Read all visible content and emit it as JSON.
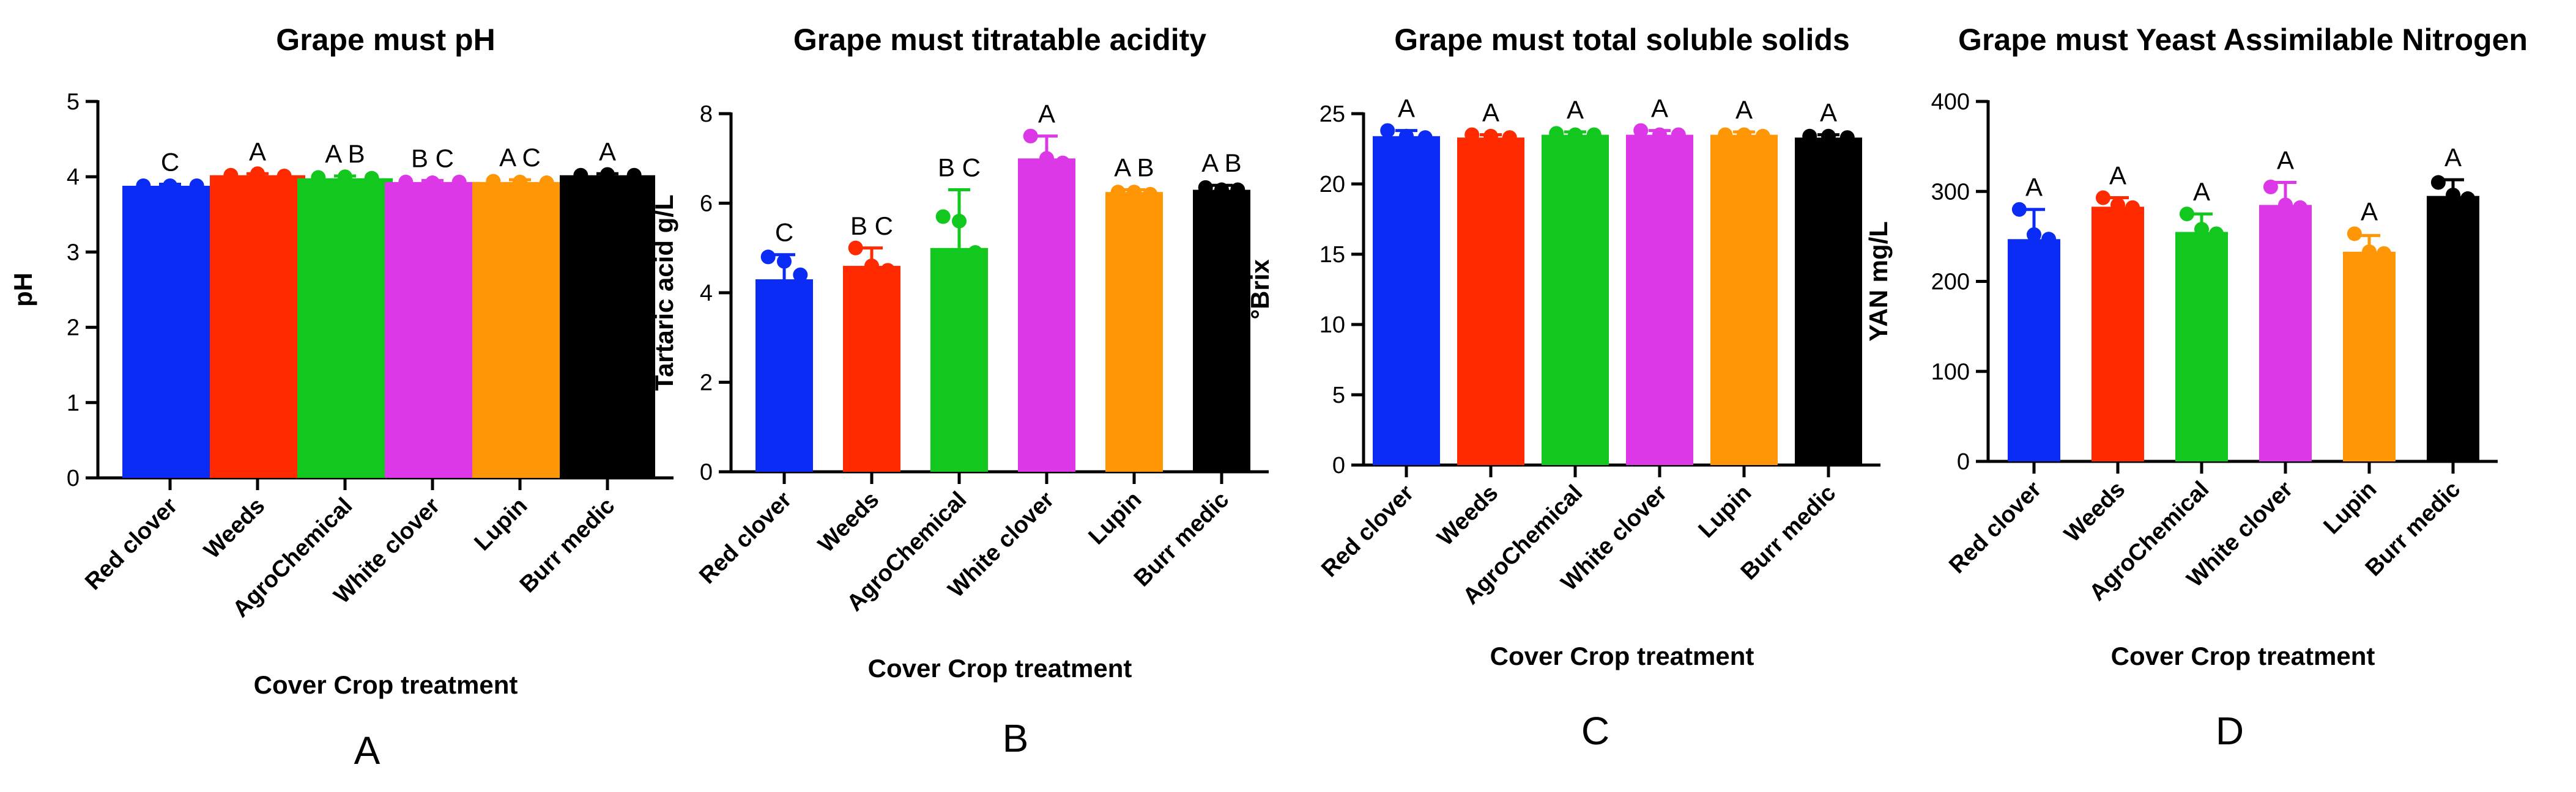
{
  "chart_data": [
    {
      "type": "bar",
      "title": "Grape must pH",
      "xlabel": "Cover Crop treatment",
      "ylabel": "pH",
      "panel_label": "A",
      "ylim": [
        0,
        5
      ],
      "yticks": [
        0,
        1,
        2,
        3,
        4,
        5
      ],
      "categories": [
        "Red clover",
        "Weeds",
        "AgroChemical",
        "White clover",
        "Lupin",
        "Burr medic"
      ],
      "colors": [
        "#0a2cf5",
        "#ff2a00",
        "#12c81e",
        "#dd38e8",
        "#ff9606",
        "#000000"
      ],
      "values": [
        3.88,
        4.02,
        3.98,
        3.93,
        3.93,
        4.02
      ],
      "error": [
        0.02,
        0.02,
        0.03,
        0.02,
        0.03,
        0.02
      ],
      "points": [
        [
          3.88,
          3.88,
          3.88
        ],
        [
          4.02,
          4.04,
          4.01
        ],
        [
          3.99,
          4.0,
          3.98
        ],
        [
          3.93,
          3.92,
          3.93
        ],
        [
          3.94,
          3.93,
          3.92
        ],
        [
          4.02,
          4.03,
          4.02
        ]
      ],
      "significance": [
        "C",
        "A",
        "A B",
        "B C",
        "A C",
        "A"
      ]
    },
    {
      "type": "bar",
      "title": "Grape must titratable acidity",
      "xlabel": "Cover Crop treatment",
      "ylabel": "Tartaric acid  g/L",
      "panel_label": "B",
      "ylim": [
        0,
        8
      ],
      "yticks": [
        0,
        2,
        4,
        6,
        8
      ],
      "categories": [
        "Red clover",
        "Weeds",
        "AgroChemical",
        "White clover",
        "Lupin",
        "Burr medic"
      ],
      "colors": [
        "#0a2cf5",
        "#ff2a00",
        "#12c81e",
        "#dd38e8",
        "#ff9606",
        "#000000"
      ],
      "values": [
        4.3,
        4.6,
        5.0,
        7.0,
        6.25,
        6.3
      ],
      "error": [
        0.55,
        0.4,
        1.3,
        0.5,
        0.05,
        0.1
      ],
      "points": [
        [
          4.8,
          4.7,
          4.4
        ],
        [
          5.0,
          4.6,
          4.5
        ],
        [
          5.7,
          5.6,
          4.9
        ],
        [
          7.5,
          7.0,
          6.9
        ],
        [
          6.25,
          6.25,
          6.2
        ],
        [
          6.35,
          6.3,
          6.3
        ]
      ],
      "significance": [
        "C",
        "B C",
        "B C",
        "A",
        "A B",
        "A B"
      ]
    },
    {
      "type": "bar",
      "title": "Grape must total soluble solids",
      "xlabel": "Cover Crop treatment",
      "ylabel": "°Brix",
      "panel_label": "C",
      "ylim": [
        0,
        25
      ],
      "yticks": [
        0,
        5,
        10,
        15,
        20,
        25
      ],
      "categories": [
        "Red clover",
        "Weeds",
        "AgroChemical",
        "White clover",
        "Lupin",
        "Burr medic"
      ],
      "colors": [
        "#0a2cf5",
        "#ff2a00",
        "#12c81e",
        "#dd38e8",
        "#ff9606",
        "#000000"
      ],
      "values": [
        23.4,
        23.3,
        23.5,
        23.5,
        23.5,
        23.3
      ],
      "error": [
        0.4,
        0.2,
        0.2,
        0.3,
        0.2,
        0.2
      ],
      "points": [
        [
          23.8,
          23.4,
          23.3
        ],
        [
          23.5,
          23.4,
          23.3
        ],
        [
          23.6,
          23.5,
          23.5
        ],
        [
          23.8,
          23.5,
          23.5
        ],
        [
          23.5,
          23.5,
          23.4
        ],
        [
          23.4,
          23.4,
          23.3
        ]
      ],
      "significance": [
        "A",
        "A",
        "A",
        "A",
        "A",
        "A"
      ]
    },
    {
      "type": "bar",
      "title": "Grape must Yeast Assimilable Nitrogen",
      "xlabel": "Cover Crop treatment",
      "ylabel": "YAN mg/L",
      "panel_label": "D",
      "ylim": [
        0,
        400
      ],
      "yticks": [
        0,
        100,
        200,
        300,
        400
      ],
      "categories": [
        "Red clover",
        "Weeds",
        "AgroChemical",
        "White clover",
        "Lupin",
        "Burr medic"
      ],
      "colors": [
        "#0a2cf5",
        "#ff2a00",
        "#12c81e",
        "#dd38e8",
        "#ff9606",
        "#000000"
      ],
      "values": [
        247,
        283,
        255,
        285,
        233,
        295
      ],
      "error": [
        33,
        10,
        20,
        25,
        18,
        18
      ],
      "points": [
        [
          280,
          252,
          247
        ],
        [
          293,
          285,
          282
        ],
        [
          275,
          258,
          253
        ],
        [
          305,
          285,
          282
        ],
        [
          253,
          233,
          231
        ],
        [
          310,
          296,
          292
        ]
      ],
      "significance": [
        "A",
        "A",
        "A",
        "A",
        "A",
        "A"
      ]
    }
  ]
}
